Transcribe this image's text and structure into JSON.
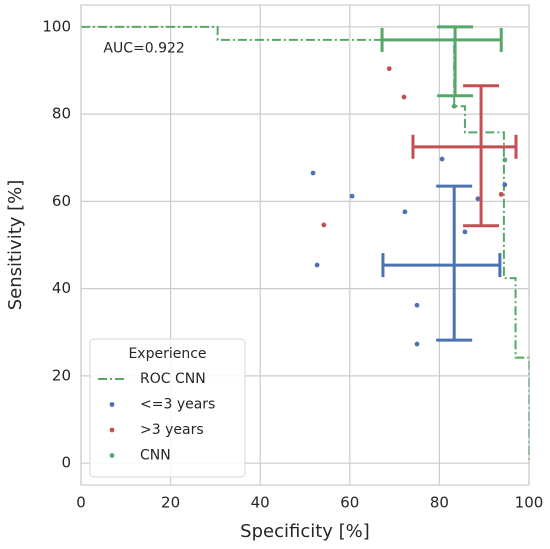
{
  "chart_data": {
    "type": "scatter",
    "xlabel": "Specificity [%]",
    "ylabel": "Sensitivity [%]",
    "xlim": [
      0,
      100
    ],
    "ylim": [
      -5,
      105
    ],
    "xticks": [
      0,
      20,
      40,
      60,
      80,
      100
    ],
    "yticks": [
      0,
      20,
      40,
      60,
      80,
      100
    ],
    "grid": true,
    "annotation": {
      "text": "AUC=0.922",
      "x": 5,
      "y": 95
    },
    "legend": {
      "title": "Experience",
      "loc": "lower left"
    },
    "series": [
      {
        "name": "ROC CNN",
        "kind": "line",
        "style": "dashdot",
        "color": "#55a868",
        "x": [
          0,
          30.5,
          30.5,
          83.3,
          83.3,
          85.7,
          85.7,
          94.4,
          94.4,
          97,
          97,
          100,
          100
        ],
        "y": [
          100,
          100,
          97,
          97,
          81.8,
          81.8,
          75.8,
          75.8,
          42.4,
          42.4,
          24.2,
          24.2,
          0
        ]
      },
      {
        "name": "<=3 years",
        "kind": "scatter",
        "color": "#4c72b0",
        "x": [
          51.8,
          60.5,
          52.7,
          72.3,
          75,
          75,
          80.6,
          85.7,
          88.6,
          94.6
        ],
        "y": [
          66.5,
          61.2,
          45.4,
          57.6,
          36.2,
          27.3,
          69.7,
          53,
          60.6,
          63.8
        ]
      },
      {
        "name": ">3 years",
        "kind": "scatter",
        "color": "#c44e52",
        "x": [
          68.8,
          72.1,
          54.2,
          93.8
        ],
        "y": [
          90.4,
          83.9,
          54.6,
          61.6
        ]
      },
      {
        "name": "CNN",
        "kind": "scatter",
        "color": "#55a868",
        "x": [
          83.3,
          94.6
        ],
        "y": [
          81.8,
          69.5
        ]
      }
    ],
    "error_bars": [
      {
        "color": "#4c72b0",
        "x": 83.3,
        "y": 45.4,
        "x_range": [
          67.4,
          93.5
        ],
        "y_range": [
          28.2,
          63.5
        ]
      },
      {
        "color": "#c44e52",
        "x": 89.3,
        "y": 72.5,
        "x_range": [
          74.1,
          97.1
        ],
        "y_range": [
          54.4,
          86.5
        ]
      },
      {
        "color": "#55a868",
        "x": 83.5,
        "y": 97,
        "x_range": [
          67.2,
          93.8
        ],
        "y_range": [
          84.2,
          100
        ]
      }
    ]
  }
}
